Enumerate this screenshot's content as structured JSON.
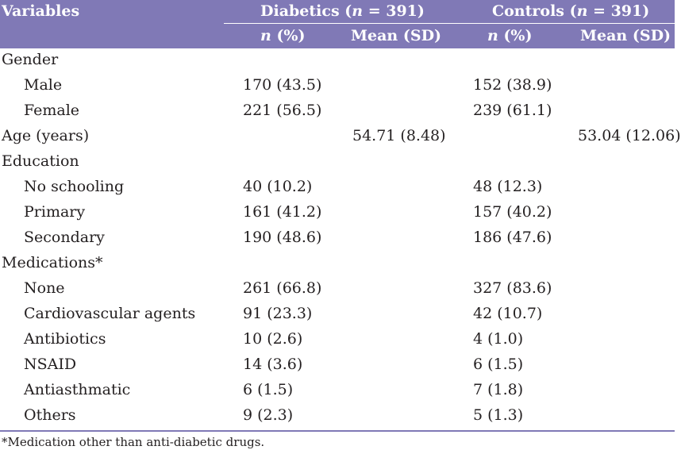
{
  "table": {
    "header": {
      "variables": "Variables",
      "diabetics_group": "Diabetics (n = 391)",
      "controls_group": "Controls (n = 391)",
      "n_pct": "n (%)",
      "mean_sd": "Mean (SD)"
    },
    "rows": [
      {
        "label": "Gender",
        "indent": false,
        "d_n": "",
        "d_mean": "",
        "c_n": "",
        "c_mean": ""
      },
      {
        "label": "Male",
        "indent": true,
        "d_n": "170 (43.5)",
        "d_mean": "",
        "c_n": "152 (38.9)",
        "c_mean": ""
      },
      {
        "label": "Female",
        "indent": true,
        "d_n": "221 (56.5)",
        "d_mean": "",
        "c_n": "239 (61.1)",
        "c_mean": ""
      },
      {
        "label": "Age (years)",
        "indent": false,
        "d_n": "",
        "d_mean": "54.71 (8.48)",
        "c_n": "",
        "c_mean": "53.04 (12.06)"
      },
      {
        "label": "Education",
        "indent": false,
        "d_n": "",
        "d_mean": "",
        "c_n": "",
        "c_mean": ""
      },
      {
        "label": "No schooling",
        "indent": true,
        "d_n": "40 (10.2)",
        "d_mean": "",
        "c_n": "48 (12.3)",
        "c_mean": ""
      },
      {
        "label": "Primary",
        "indent": true,
        "d_n": "161 (41.2)",
        "d_mean": "",
        "c_n": "157 (40.2)",
        "c_mean": ""
      },
      {
        "label": "Secondary",
        "indent": true,
        "d_n": "190 (48.6)",
        "d_mean": "",
        "c_n": "186 (47.6)",
        "c_mean": ""
      },
      {
        "label": "Medications*",
        "indent": false,
        "d_n": "",
        "d_mean": "",
        "c_n": "",
        "c_mean": ""
      },
      {
        "label": "None",
        "indent": true,
        "d_n": "261 (66.8)",
        "d_mean": "",
        "c_n": "327 (83.6)",
        "c_mean": ""
      },
      {
        "label": "Cardiovascular agents",
        "indent": true,
        "d_n": "91 (23.3)",
        "d_mean": "",
        "c_n": "42 (10.7)",
        "c_mean": ""
      },
      {
        "label": "Antibiotics",
        "indent": true,
        "d_n": "10 (2.6)",
        "d_mean": "",
        "c_n": "4 (1.0)",
        "c_mean": ""
      },
      {
        "label": "NSAID",
        "indent": true,
        "d_n": "14 (3.6)",
        "d_mean": "",
        "c_n": "6 (1.5)",
        "c_mean": ""
      },
      {
        "label": "Antiasthmatic",
        "indent": true,
        "d_n": "6 (1.5)",
        "d_mean": "",
        "c_n": "7 (1.8)",
        "c_mean": ""
      },
      {
        "label": "Others",
        "indent": true,
        "d_n": "9 (2.3)",
        "d_mean": "",
        "c_n": "5 (1.3)",
        "c_mean": ""
      }
    ],
    "footnote": "*Medication other than anti-diabetic drugs.",
    "colors": {
      "header_bg": "#8079b6",
      "header_text": "#ffffff",
      "body_text": "#231f20"
    }
  }
}
